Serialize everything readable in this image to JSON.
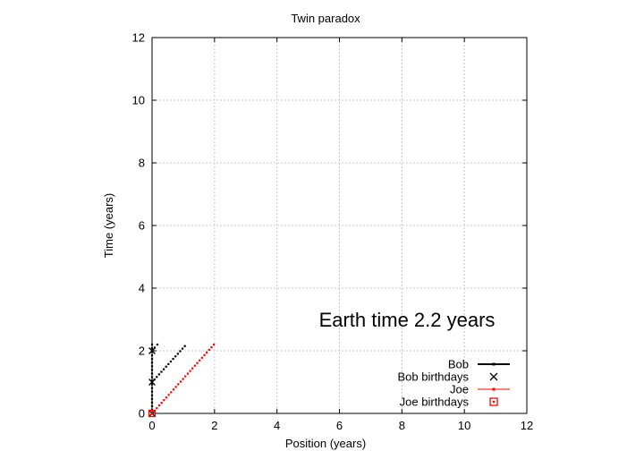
{
  "chart_data": {
    "type": "line",
    "title": "Twin paradox",
    "xlabel": "Position (years)",
    "ylabel": "Time (years)",
    "xlim": [
      0,
      12
    ],
    "ylim": [
      0,
      12
    ],
    "xticks": [
      "0",
      "2",
      "4",
      "6",
      "8",
      "10",
      "12"
    ],
    "yticks": [
      "0",
      "2",
      "4",
      "6",
      "8",
      "10",
      "12"
    ],
    "grid": true,
    "legend_position": "bottom-right",
    "annotation": "Earth time  2.2 years",
    "colors": {
      "bob": "#000000",
      "joe": "#ff0000",
      "grid": "#c8c8c8"
    },
    "series": [
      {
        "name": "Bob",
        "key": "bob",
        "style": "line-points",
        "segments": [
          {
            "from": [
              0,
              0
            ],
            "to": [
              0,
              2.2
            ]
          },
          {
            "from": [
              0,
              1.0
            ],
            "to": [
              1.05,
              2.15
            ]
          },
          {
            "from": [
              0,
              2.0
            ],
            "to": [
              0.17,
              2.2
            ]
          }
        ]
      },
      {
        "name": "Bob birthdays",
        "key": "bob",
        "style": "cross",
        "points": [
          [
            0,
            0
          ],
          [
            0,
            1
          ],
          [
            0,
            2
          ]
        ]
      },
      {
        "name": "Joe",
        "key": "joe",
        "style": "line-points",
        "segments": [
          {
            "from": [
              0,
              0
            ],
            "to": [
              1.98,
              2.2
            ]
          }
        ]
      },
      {
        "name": "Joe birthdays",
        "key": "joe",
        "style": "square",
        "points": [
          [
            0,
            0
          ]
        ]
      }
    ]
  }
}
